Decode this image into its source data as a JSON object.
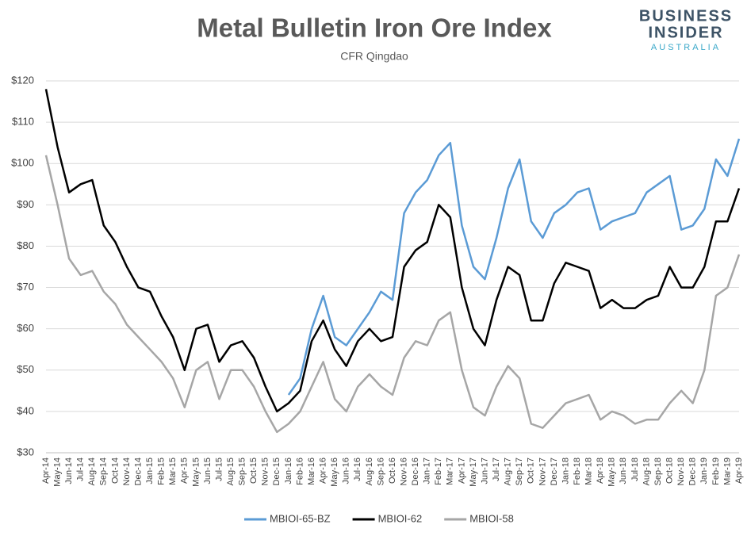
{
  "chart_data": {
    "type": "line",
    "title": "Metal Bulletin Iron Ore Index",
    "subtitle": "CFR Qingdao",
    "branding": [
      "BUSINESS",
      "INSIDER",
      "AUSTRALIA"
    ],
    "categories": [
      "Apr-14",
      "May-14",
      "Jun-14",
      "Jul-14",
      "Aug-14",
      "Sep-14",
      "Oct-14",
      "Nov-14",
      "Dec-14",
      "Jan-15",
      "Feb-15",
      "Mar-15",
      "Apr-15",
      "May-15",
      "Jun-15",
      "Jul-15",
      "Aug-15",
      "Sep-15",
      "Oct-15",
      "Nov-15",
      "Dec-15",
      "Jan-16",
      "Feb-16",
      "Mar-16",
      "Apr-16",
      "May-16",
      "Jun-16",
      "Jul-16",
      "Aug-16",
      "Sep-16",
      "Oct-16",
      "Nov-16",
      "Dec-16",
      "Jan-17",
      "Feb-17",
      "Mar-17",
      "Apr-17",
      "May-17",
      "Jun-17",
      "Jul-17",
      "Aug-17",
      "Sep-17",
      "Oct-17",
      "Nov-17",
      "Dec-17",
      "Jan-18",
      "Feb-18",
      "Mar-18",
      "Apr-18",
      "May-18",
      "Jun-18",
      "Jul-18",
      "Aug-18",
      "Sep-18",
      "Oct-18",
      "Nov-18",
      "Dec-18",
      "Jan-19",
      "Feb-19",
      "Mar-19",
      "Apr-19"
    ],
    "series": [
      {
        "name": "MBIOI-65-BZ",
        "color": "#5b9bd5",
        "values": [
          null,
          null,
          null,
          null,
          null,
          null,
          null,
          null,
          null,
          null,
          null,
          null,
          null,
          null,
          null,
          null,
          null,
          null,
          null,
          null,
          null,
          44,
          48,
          60,
          68,
          58,
          56,
          60,
          64,
          69,
          67,
          88,
          93,
          96,
          102,
          105,
          85,
          75,
          72,
          82,
          94,
          101,
          86,
          82,
          88,
          90,
          93,
          94,
          84,
          86,
          87,
          88,
          93,
          95,
          97,
          84,
          85,
          89,
          101,
          97,
          106
        ]
      },
      {
        "name": "MBIOI-62",
        "color": "#000000",
        "values": [
          118,
          104,
          93,
          95,
          96,
          85,
          81,
          75,
          70,
          69,
          63,
          58,
          50,
          60,
          61,
          52,
          56,
          57,
          53,
          46,
          40,
          42,
          45,
          57,
          62,
          55,
          51,
          57,
          60,
          57,
          58,
          75,
          79,
          81,
          90,
          87,
          70,
          60,
          56,
          67,
          75,
          73,
          62,
          62,
          71,
          76,
          75,
          74,
          65,
          67,
          65,
          65,
          67,
          68,
          75,
          70,
          70,
          75,
          86,
          86,
          94
        ]
      },
      {
        "name": "MBIOI-58",
        "color": "#a6a6a6",
        "values": [
          102,
          90,
          77,
          73,
          74,
          69,
          66,
          61,
          58,
          55,
          52,
          48,
          41,
          50,
          52,
          43,
          50,
          50,
          46,
          40,
          35,
          37,
          40,
          46,
          52,
          43,
          40,
          46,
          49,
          46,
          44,
          53,
          57,
          56,
          62,
          64,
          50,
          41,
          39,
          46,
          51,
          48,
          37,
          36,
          39,
          42,
          43,
          44,
          38,
          40,
          39,
          37,
          38,
          38,
          42,
          45,
          42,
          50,
          68,
          70,
          78
        ]
      }
    ],
    "ylim": [
      30,
      120
    ],
    "yticks": [
      {
        "value": 30,
        "label": "$30"
      },
      {
        "value": 40,
        "label": "$40"
      },
      {
        "value": 50,
        "label": "$50"
      },
      {
        "value": 60,
        "label": "$60"
      },
      {
        "value": 70,
        "label": "$70"
      },
      {
        "value": 80,
        "label": "$80"
      },
      {
        "value": 90,
        "label": "$90"
      },
      {
        "value": 100,
        "label": "$100"
      },
      {
        "value": 110,
        "label": "$110"
      },
      {
        "value": 120,
        "label": "$120"
      }
    ],
    "grid": true,
    "legend": "bottom"
  }
}
